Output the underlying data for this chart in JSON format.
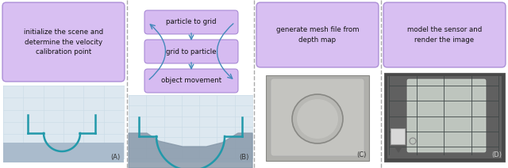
{
  "fig_width": 6.4,
  "fig_height": 2.12,
  "dpi": 100,
  "bg_color": "#ffffff",
  "box_facecolor": "#ccaaee",
  "box_edgecolor": "#9977cc",
  "arrow_color": "#4488bb",
  "dash_color": "#aaaaaa",
  "panel_A_text": "initialize the scene and\ndetermine the velocity\ncalibration point",
  "panel_B_boxes": [
    "particle to grid",
    "grid to particle",
    "object movement"
  ],
  "panel_C_text": "generate mesh file from\ndepth map",
  "panel_D_text": "model the sensor and\nrender the image",
  "teal_color": "#2299aa",
  "grid_color": "#ccdde8",
  "gnd_light": "#aabbcc",
  "gnd_dark": "#8899aa",
  "diag_bg": "#dde8f0"
}
